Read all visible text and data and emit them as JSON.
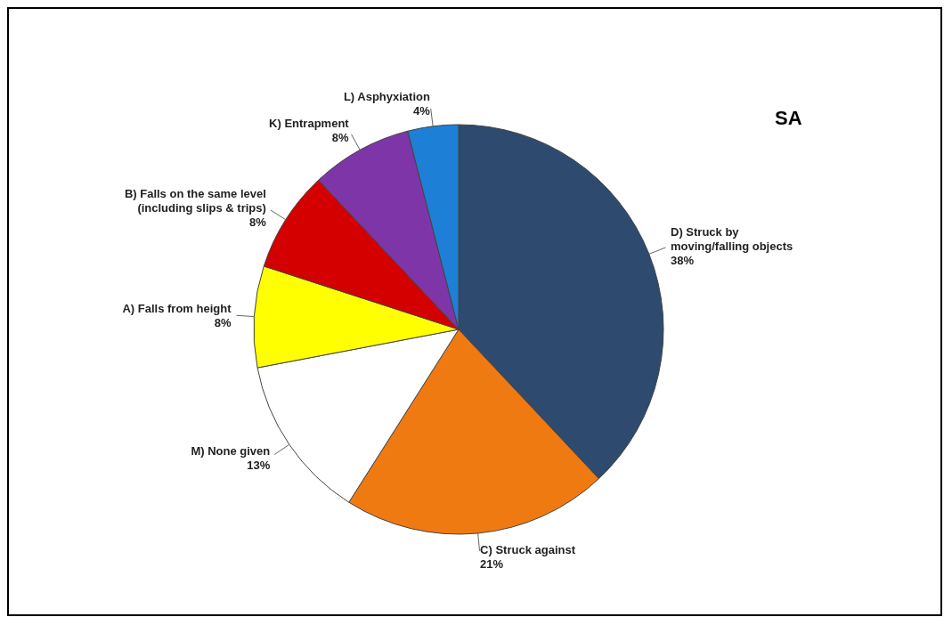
{
  "chart_data": {
    "type": "pie",
    "title": "SA",
    "categories": [
      "D) Struck by moving/falling objects",
      "C) Struck against",
      "M) None given",
      "A) Falls from height",
      "B) Falls on the same level (including slips & trips)",
      "K) Entrapment",
      "L) Asphyxiation"
    ],
    "values": [
      38,
      21,
      13,
      8,
      8,
      8,
      4
    ],
    "colors": [
      "#2e4a6e",
      "#f07a12",
      "#ffffff",
      "#ffff00",
      "#d40000",
      "#7d35a8",
      "#1e7fd6"
    ],
    "value_labels": [
      "38%",
      "21%",
      "13%",
      "8%",
      "8%",
      "8%",
      "4%"
    ]
  }
}
